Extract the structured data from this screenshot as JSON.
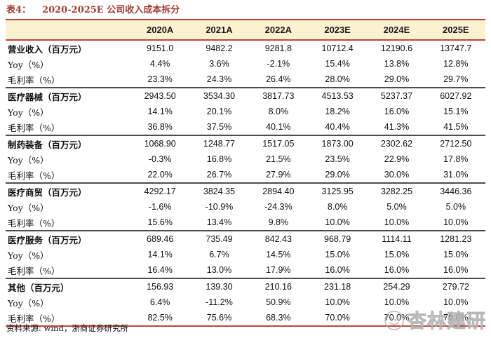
{
  "title": {
    "prefix": "表4：",
    "text": "2020-2025E 公司收入成本拆分"
  },
  "table": {
    "columns": [
      "2020A",
      "2021A",
      "2022A",
      "2023E",
      "2024E",
      "2025E"
    ],
    "rows": [
      {
        "label": "营业收入（百万元）",
        "bold": true,
        "section_start": false,
        "values": [
          "9151.0",
          "9482.2",
          "9281.8",
          "10712.4",
          "12190.6",
          "13747.7"
        ]
      },
      {
        "label": "Yoy（%）",
        "bold": false,
        "section_start": false,
        "values": [
          "4.4%",
          "3.6%",
          "-2.1%",
          "15.4%",
          "13.8%",
          "12.8%"
        ]
      },
      {
        "label": "毛利率（%）",
        "bold": false,
        "section_start": false,
        "values": [
          "23.3%",
          "24.3%",
          "26.4%",
          "28.0%",
          "29.0%",
          "29.7%"
        ]
      },
      {
        "label": "医疗器械（百万元）",
        "bold": true,
        "section_start": true,
        "values": [
          "2943.50",
          "3534.30",
          "3817.73",
          "4513.53",
          "5237.37",
          "6027.92"
        ]
      },
      {
        "label": "Yoy（%）",
        "bold": false,
        "section_start": false,
        "values": [
          "14.1%",
          "20.1%",
          "8.0%",
          "18.2%",
          "16.0%",
          "15.1%"
        ]
      },
      {
        "label": "毛利率（%）",
        "bold": false,
        "section_start": false,
        "values": [
          "36.8%",
          "37.5%",
          "40.1%",
          "40.4%",
          "41.3%",
          "41.5%"
        ]
      },
      {
        "label": "制药装备（百万元）",
        "bold": true,
        "section_start": true,
        "values": [
          "1068.90",
          "1248.77",
          "1517.05",
          "1873.00",
          "2302.62",
          "2712.50"
        ]
      },
      {
        "label": "Yoy（%）",
        "bold": false,
        "section_start": false,
        "values": [
          "-0.3%",
          "16.8%",
          "21.5%",
          "23.5%",
          "22.9%",
          "17.8%"
        ]
      },
      {
        "label": "毛利率（%）",
        "bold": false,
        "section_start": false,
        "values": [
          "22.0%",
          "26.7%",
          "27.9%",
          "29.0%",
          "30.0%",
          "31.0%"
        ]
      },
      {
        "label": "医疗商贸（百万元）",
        "bold": true,
        "section_start": true,
        "values": [
          "4292.17",
          "3824.35",
          "2894.40",
          "3125.95",
          "3282.25",
          "3446.36"
        ]
      },
      {
        "label": "Yoy（%）",
        "bold": false,
        "section_start": false,
        "values": [
          "-1.6%",
          "-10.9%",
          "-24.3%",
          "8.0%",
          "5.0%",
          "5.0%"
        ]
      },
      {
        "label": "毛利率（%）",
        "bold": false,
        "section_start": false,
        "values": [
          "15.6%",
          "13.4%",
          "9.8%",
          "10.0%",
          "10.0%",
          "10.0%"
        ]
      },
      {
        "label": "医疗服务（百万元）",
        "bold": true,
        "section_start": true,
        "values": [
          "689.46",
          "735.49",
          "842.43",
          "968.79",
          "1114.11",
          "1281.23"
        ]
      },
      {
        "label": "Yoy（%）",
        "bold": false,
        "section_start": false,
        "values": [
          "14.1%",
          "6.7%",
          "14.5%",
          "15.0%",
          "15.0%",
          "15.0%"
        ]
      },
      {
        "label": "毛利率（%）",
        "bold": false,
        "section_start": false,
        "values": [
          "16.4%",
          "13.0%",
          "17.9%",
          "16.0%",
          "16.0%",
          "16.0%"
        ]
      },
      {
        "label": "其他（百万元）",
        "bold": true,
        "section_start": true,
        "values": [
          "156.93",
          "139.30",
          "210.16",
          "231.18",
          "254.29",
          "279.72"
        ]
      },
      {
        "label": "Yoy（%）",
        "bold": false,
        "section_start": false,
        "values": [
          "6.4%",
          "-11.2%",
          "50.9%",
          "10.0%",
          "10.0%",
          "10.0%"
        ]
      },
      {
        "label": "毛利率（%）",
        "bold": false,
        "section_start": false,
        "values": [
          "82.5%",
          "75.6%",
          "68.3%",
          "70.0%",
          "70.0%",
          "70.0%"
        ]
      }
    ]
  },
  "footer": {
    "source": "资料来源: wind，浙商证券研究所"
  },
  "watermark": {
    "text": "杏林建研",
    "logo": "smiley-face-icon"
  },
  "colors": {
    "title_red": "#9e3b33",
    "rule_red": "#c0453e",
    "header_bg": "#fcf2d0",
    "section_divider": "#4d4d4d",
    "watermark_gray": "#bababa"
  }
}
